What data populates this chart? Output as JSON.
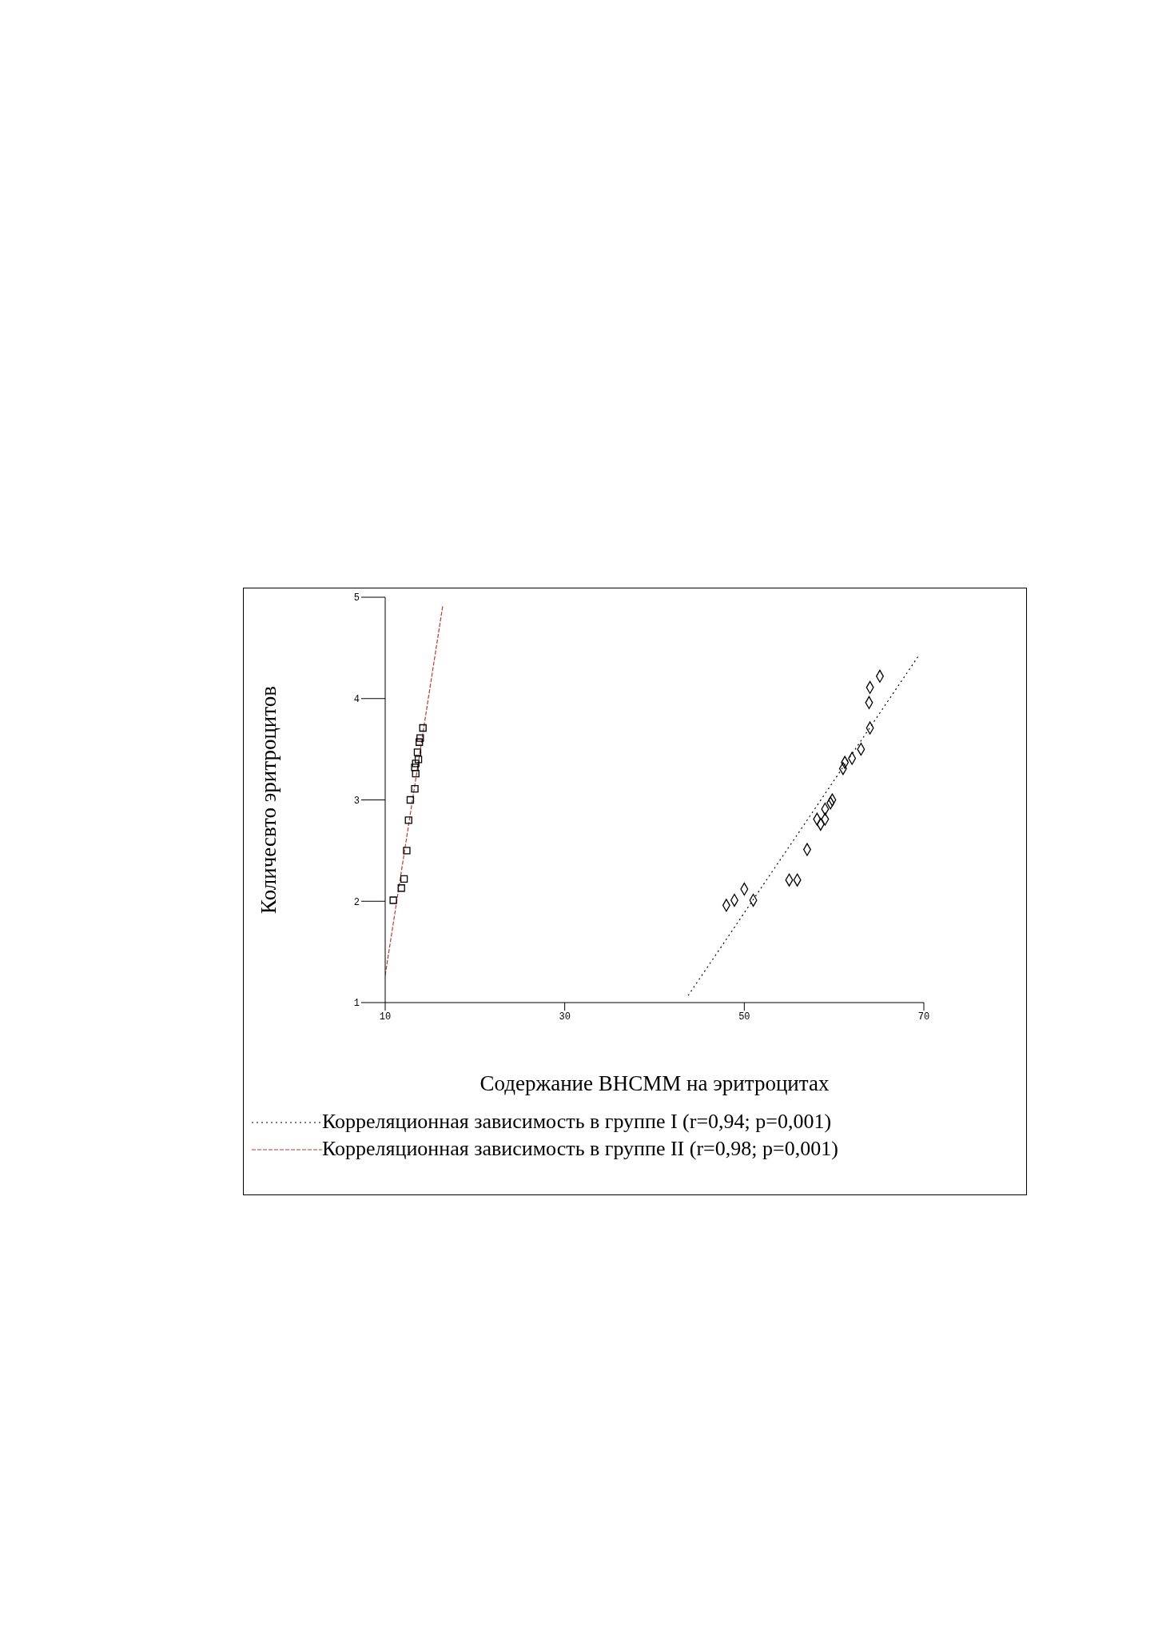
{
  "chart_data": {
    "type": "scatter",
    "xlabel": "Содержание ВНСММ на эритроцитах",
    "ylabel": "Количесвто эритроцитов",
    "xlim": [
      10,
      70
    ],
    "xticks": [
      10,
      30,
      50,
      70
    ],
    "ylim": [
      1,
      5
    ],
    "yticks": [
      1,
      2,
      3,
      4,
      5
    ],
    "legend": "bottom",
    "series": [
      {
        "marker": "square",
        "color": "#000000",
        "x": [
          14.2,
          13.9,
          13.8,
          13.6,
          13.7,
          13.4,
          13.3,
          13.4,
          13.3,
          12.8,
          12.6,
          12.4,
          12.1,
          11.8,
          10.9
        ],
        "values": [
          3.71,
          3.61,
          3.57,
          3.47,
          3.4,
          3.36,
          3.32,
          3.26,
          3.11,
          3.0,
          2.8,
          2.5,
          2.22,
          2.13,
          2.01
        ]
      },
      {
        "marker": "diamond",
        "color": "#000000",
        "x": [
          65.1,
          64.0,
          63.9,
          64.0,
          63.0,
          62.0,
          61.2,
          61.0,
          59.8,
          59.6,
          59.0,
          58.1,
          59.0,
          58.5,
          57.0,
          55.9,
          55.0,
          51.0,
          50.0,
          48.9,
          48.0
        ],
        "values": [
          4.22,
          4.11,
          3.96,
          3.71,
          3.5,
          3.41,
          3.37,
          3.31,
          3.0,
          2.97,
          2.91,
          2.81,
          2.81,
          2.76,
          2.51,
          2.21,
          2.21,
          2.01,
          2.12,
          2.01,
          1.96
        ]
      },
      {
        "type": "line",
        "name": "Корреляционная зависимость в группе I (r=0,94; p=0,001)",
        "color": "#000000",
        "line_style": "dotted",
        "x": [
          43.75,
          69.4
        ],
        "values": [
          1.07,
          4.42
        ]
      },
      {
        "type": "line",
        "name": "Корреляционная зависимость в группе II (r=0,98; p=0,001)",
        "color": "#c0392b",
        "line_style": "dashed",
        "x": [
          10,
          16.4
        ],
        "values": [
          1.27,
          4.91
        ]
      }
    ]
  }
}
